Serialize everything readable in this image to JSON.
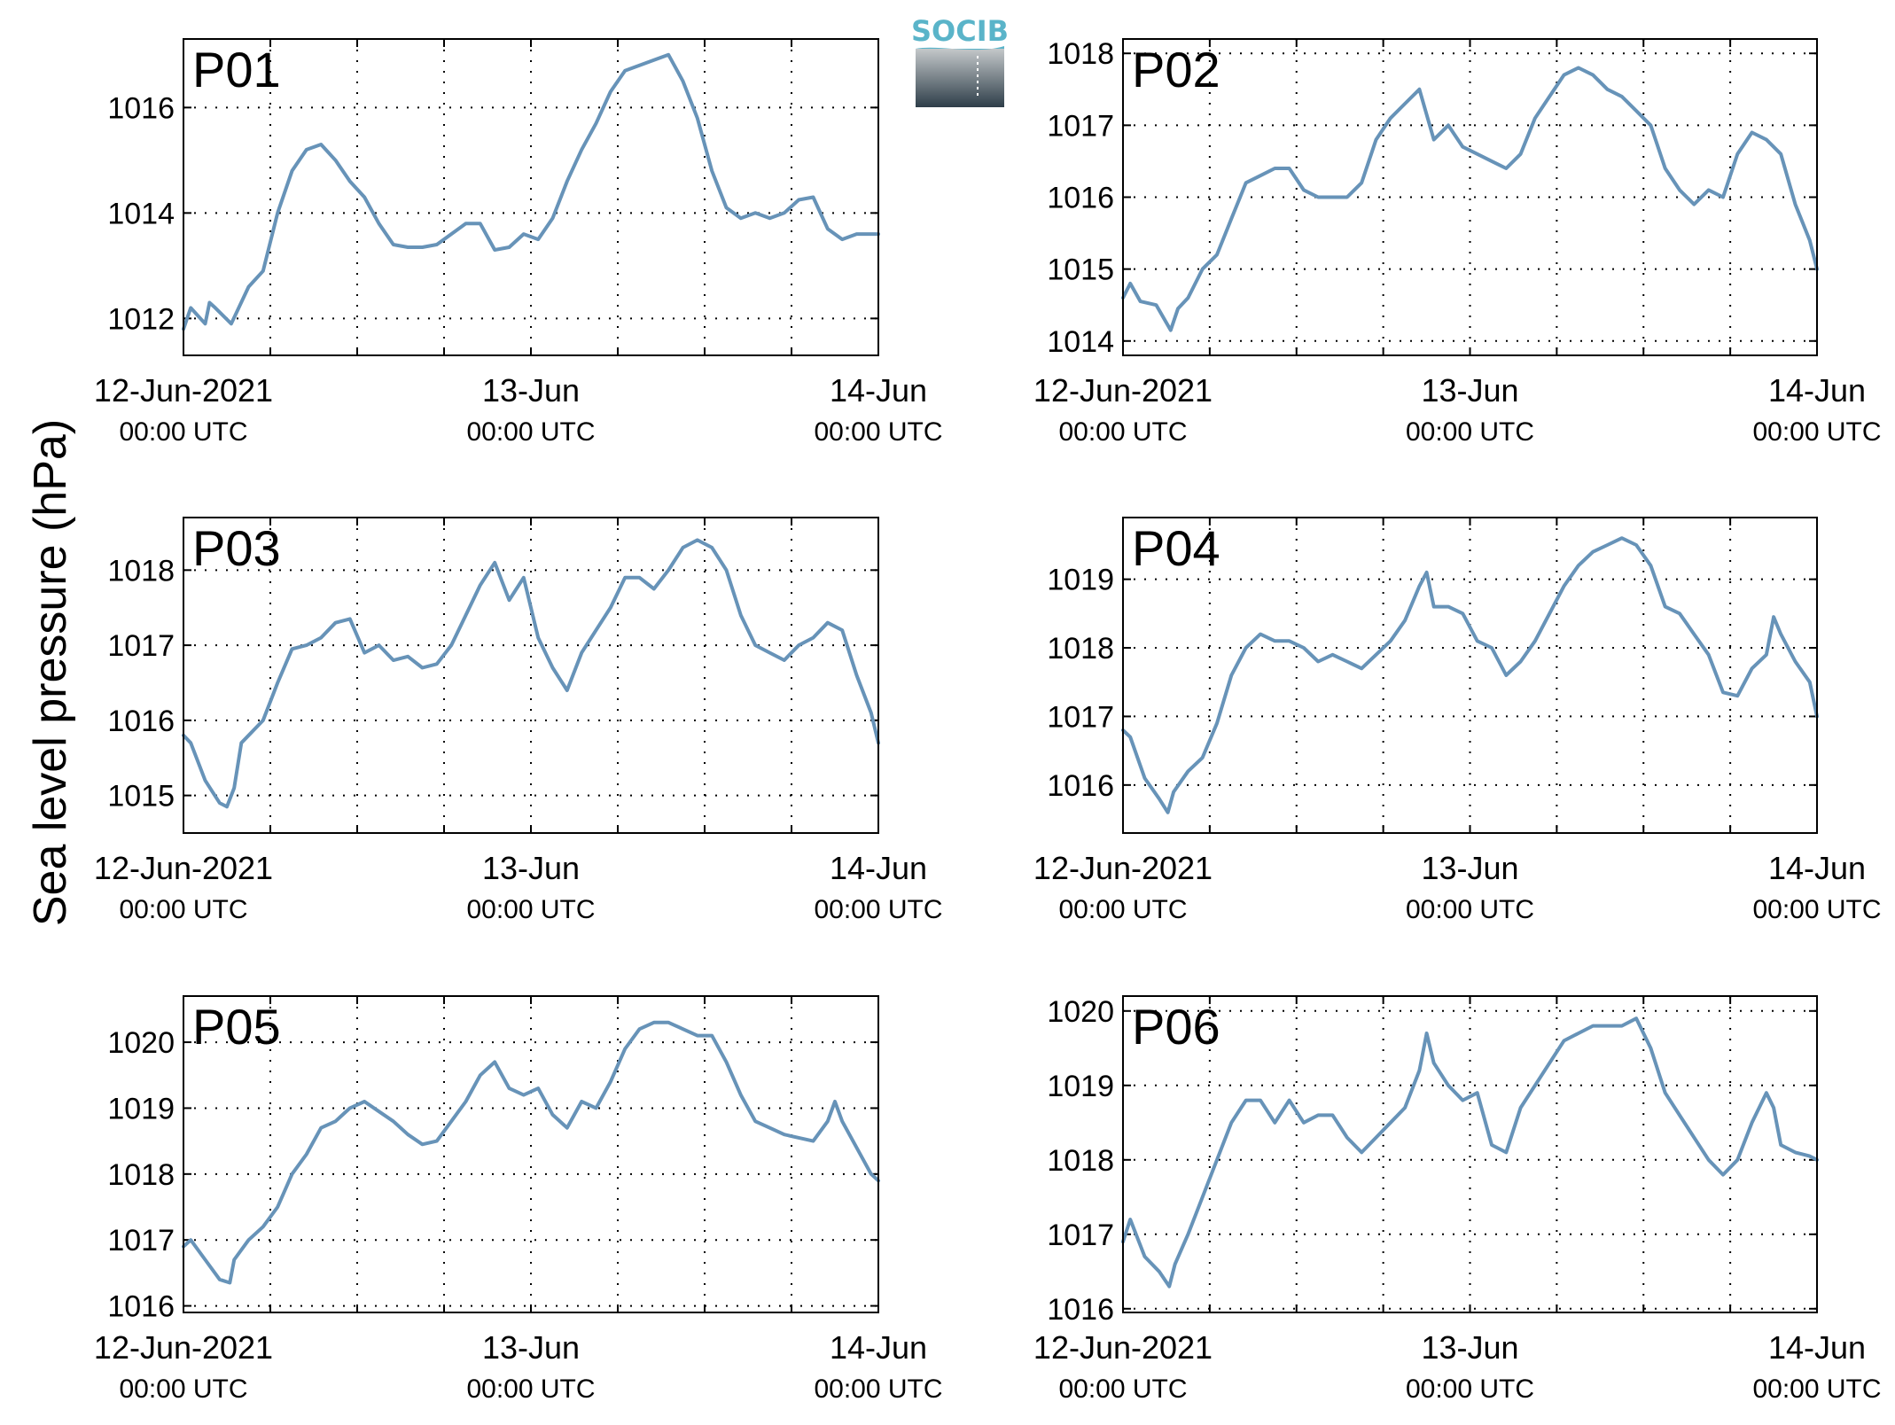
{
  "figure": {
    "ylabel": "Sea level pressure (hPa)",
    "logo_text": "SOCIB",
    "line_color": "#6793b8",
    "label_color": "#ff0000"
  },
  "chart_data": [
    {
      "type": "line",
      "station": "P01",
      "x_tick_labels": [
        {
          "date": "12-Jun-2021",
          "time": "00:00 UTC"
        },
        {
          "date": "13-Jun",
          "time": "00:00 UTC"
        },
        {
          "date": "14-Jun",
          "time": "00:00 UTC"
        }
      ],
      "xlim_hours": [
        0,
        48
      ],
      "ylim": [
        1011.3,
        1017.3
      ],
      "yticks": [
        1012,
        1014,
        1016
      ],
      "grid": true,
      "series": [
        {
          "x_hours": [
            0,
            0.5,
            1.5,
            1.8,
            2.2,
            3.3,
            4.5,
            5.5,
            6.5,
            7.5,
            8.5,
            9.5,
            10.5,
            11.5,
            12.5,
            13.5,
            14.5,
            15.5,
            16.5,
            17.5,
            18.5,
            19.5,
            20.5,
            21.5,
            22.5,
            23.5,
            24.5,
            25.5,
            26.5,
            27.5,
            28.5,
            29.5,
            30.5,
            31.5,
            32.5,
            33.5,
            34.5,
            35.5,
            36.5,
            37.5,
            38.5,
            39.5,
            40.5,
            41.5,
            42.5,
            43.5,
            44.5,
            45.5,
            46.5,
            47.5,
            48
          ],
          "values": [
            1011.8,
            1012.2,
            1011.9,
            1012.3,
            1012.2,
            1011.9,
            1012.6,
            1012.9,
            1014.0,
            1014.8,
            1015.2,
            1015.3,
            1015.0,
            1014.6,
            1014.3,
            1013.8,
            1013.4,
            1013.35,
            1013.35,
            1013.4,
            1013.6,
            1013.8,
            1013.8,
            1013.3,
            1013.35,
            1013.6,
            1013.5,
            1013.9,
            1014.6,
            1015.2,
            1015.7,
            1016.3,
            1016.7,
            1016.8,
            1016.9,
            1017.0,
            1016.5,
            1015.8,
            1014.8,
            1014.1,
            1013.9,
            1014.0,
            1013.9,
            1014.0,
            1014.25,
            1014.3,
            1013.7,
            1013.5,
            1013.6,
            1013.6,
            1013.6
          ]
        }
      ]
    },
    {
      "type": "line",
      "station": "P02",
      "x_tick_labels": [
        {
          "date": "12-Jun-2021",
          "time": "00:00 UTC"
        },
        {
          "date": "13-Jun",
          "time": "00:00 UTC"
        },
        {
          "date": "14-Jun",
          "time": "00:00 UTC"
        }
      ],
      "xlim_hours": [
        0,
        48
      ],
      "ylim": [
        1013.8,
        1018.2
      ],
      "yticks": [
        1014,
        1015,
        1016,
        1017,
        1018
      ],
      "grid": true,
      "series": [
        {
          "x_hours": [
            0,
            0.5,
            1.2,
            2.3,
            3.3,
            3.8,
            4.5,
            5.5,
            6.5,
            7.5,
            8.5,
            9.5,
            10.5,
            11.5,
            12.5,
            13.5,
            14.5,
            15.5,
            16.5,
            17.5,
            18.5,
            19.5,
            20.5,
            21.5,
            22.5,
            23.5,
            24.5,
            25.5,
            26.5,
            27.5,
            28.5,
            29.5,
            30.5,
            31.5,
            32.5,
            33.5,
            34.5,
            35.5,
            36.5,
            37.5,
            38.5,
            39.5,
            40.5,
            41.5,
            42.5,
            43.5,
            44.5,
            45.5,
            46.5,
            47.5,
            48
          ],
          "values": [
            1014.6,
            1014.8,
            1014.55,
            1014.5,
            1014.15,
            1014.45,
            1014.6,
            1015.0,
            1015.2,
            1015.7,
            1016.2,
            1016.3,
            1016.4,
            1016.4,
            1016.1,
            1016.0,
            1016.0,
            1016.0,
            1016.2,
            1016.8,
            1017.1,
            1017.3,
            1017.5,
            1016.8,
            1017.0,
            1016.7,
            1016.6,
            1016.5,
            1016.4,
            1016.6,
            1017.1,
            1017.4,
            1017.7,
            1017.8,
            1017.7,
            1017.5,
            1017.4,
            1017.2,
            1017.0,
            1016.4,
            1016.1,
            1015.9,
            1016.1,
            1016.0,
            1016.6,
            1016.9,
            1016.8,
            1016.6,
            1015.9,
            1015.4,
            1015.0
          ]
        }
      ]
    },
    {
      "type": "line",
      "station": "P03",
      "x_tick_labels": [
        {
          "date": "12-Jun-2021",
          "time": "00:00 UTC"
        },
        {
          "date": "13-Jun",
          "time": "00:00 UTC"
        },
        {
          "date": "14-Jun",
          "time": "00:00 UTC"
        }
      ],
      "xlim_hours": [
        0,
        48
      ],
      "ylim": [
        1014.5,
        1018.7
      ],
      "yticks": [
        1015,
        1016,
        1017,
        1018
      ],
      "grid": true,
      "series": [
        {
          "x_hours": [
            0,
            0.5,
            1.5,
            2.5,
            3.0,
            3.5,
            4.0,
            4.5,
            5.5,
            6.5,
            7.5,
            8.5,
            9.5,
            10.5,
            11.5,
            12.5,
            13.5,
            14.5,
            15.5,
            16.5,
            17.5,
            18.5,
            19.5,
            20.5,
            21.5,
            22.5,
            23.5,
            24.5,
            25.5,
            26.5,
            27.5,
            28.5,
            29.5,
            30.5,
            31.5,
            32.5,
            33.5,
            34.5,
            35.5,
            36.5,
            37.5,
            38.5,
            39.5,
            40.5,
            41.5,
            42.5,
            43.5,
            44.5,
            45.5,
            46.5,
            47.5,
            48
          ],
          "values": [
            1015.8,
            1015.7,
            1015.2,
            1014.9,
            1014.85,
            1015.1,
            1015.7,
            1015.8,
            1016.0,
            1016.5,
            1016.95,
            1017.0,
            1017.1,
            1017.3,
            1017.35,
            1016.9,
            1017.0,
            1016.8,
            1016.85,
            1016.7,
            1016.75,
            1017.0,
            1017.4,
            1017.8,
            1018.1,
            1017.6,
            1017.9,
            1017.1,
            1016.7,
            1016.4,
            1016.9,
            1017.2,
            1017.5,
            1017.9,
            1017.9,
            1017.75,
            1018.0,
            1018.3,
            1018.4,
            1018.3,
            1018.0,
            1017.4,
            1017.0,
            1016.9,
            1016.8,
            1017.0,
            1017.1,
            1017.3,
            1017.2,
            1016.6,
            1016.1,
            1015.7
          ]
        }
      ]
    },
    {
      "type": "line",
      "station": "P04",
      "x_tick_labels": [
        {
          "date": "12-Jun-2021",
          "time": "00:00 UTC"
        },
        {
          "date": "13-Jun",
          "time": "00:00 UTC"
        },
        {
          "date": "14-Jun",
          "time": "00:00 UTC"
        }
      ],
      "xlim_hours": [
        0,
        48
      ],
      "ylim": [
        1015.3,
        1019.9
      ],
      "yticks": [
        1016,
        1017,
        1018,
        1019
      ],
      "grid": true,
      "series": [
        {
          "x_hours": [
            0,
            0.5,
            1.5,
            2.5,
            3.1,
            3.5,
            4.5,
            5.5,
            6.5,
            7.5,
            8.5,
            9.5,
            10.5,
            11.5,
            12.5,
            13.5,
            14.5,
            15.5,
            16.5,
            17.5,
            18.5,
            19.5,
            20.5,
            21.0,
            21.5,
            22.5,
            23.5,
            24.5,
            25.5,
            26.5,
            27.5,
            28.5,
            29.5,
            30.5,
            31.5,
            32.5,
            33.5,
            34.5,
            35.5,
            36.5,
            37.5,
            38.5,
            39.5,
            40.5,
            41.5,
            42.5,
            43.5,
            44.5,
            45.0,
            45.5,
            46.5,
            47.5,
            48
          ],
          "values": [
            1016.8,
            1016.7,
            1016.1,
            1015.8,
            1015.6,
            1015.9,
            1016.2,
            1016.4,
            1016.9,
            1017.6,
            1018.0,
            1018.2,
            1018.1,
            1018.1,
            1018.0,
            1017.8,
            1017.9,
            1017.8,
            1017.7,
            1017.9,
            1018.1,
            1018.4,
            1018.9,
            1019.1,
            1018.6,
            1018.6,
            1018.5,
            1018.1,
            1018.0,
            1017.6,
            1017.8,
            1018.1,
            1018.5,
            1018.9,
            1019.2,
            1019.4,
            1019.5,
            1019.6,
            1019.5,
            1019.2,
            1018.6,
            1018.5,
            1018.2,
            1017.9,
            1017.35,
            1017.3,
            1017.7,
            1017.9,
            1018.45,
            1018.2,
            1017.8,
            1017.5,
            1017.0
          ]
        }
      ]
    },
    {
      "type": "line",
      "station": "P05",
      "x_tick_labels": [
        {
          "date": "12-Jun-2021",
          "time": "00:00 UTC"
        },
        {
          "date": "13-Jun",
          "time": "00:00 UTC"
        },
        {
          "date": "14-Jun",
          "time": "00:00 UTC"
        }
      ],
      "xlim_hours": [
        0,
        48
      ],
      "ylim": [
        1015.9,
        1020.7
      ],
      "yticks": [
        1016,
        1017,
        1018,
        1019,
        1020
      ],
      "grid": true,
      "series": [
        {
          "x_hours": [
            0,
            0.5,
            1.5,
            2.5,
            3.2,
            3.5,
            4.5,
            5.5,
            6.5,
            7.5,
            8.5,
            9.5,
            10.5,
            11.5,
            12.5,
            13.5,
            14.5,
            15.5,
            16.5,
            17.5,
            18.5,
            19.5,
            20.5,
            21.5,
            22.5,
            23.5,
            24.5,
            25.5,
            26.5,
            27.5,
            28.5,
            29.5,
            30.5,
            31.5,
            32.5,
            33.5,
            34.5,
            35.5,
            36.5,
            37.5,
            38.5,
            39.5,
            40.5,
            41.5,
            42.5,
            43.5,
            44.5,
            45.0,
            45.5,
            46.5,
            47.5,
            48
          ],
          "values": [
            1016.9,
            1017.0,
            1016.7,
            1016.4,
            1016.35,
            1016.7,
            1017.0,
            1017.2,
            1017.5,
            1018.0,
            1018.3,
            1018.7,
            1018.8,
            1019.0,
            1019.1,
            1018.95,
            1018.8,
            1018.6,
            1018.45,
            1018.5,
            1018.8,
            1019.1,
            1019.5,
            1019.7,
            1019.3,
            1019.2,
            1019.3,
            1018.9,
            1018.7,
            1019.1,
            1019.0,
            1019.4,
            1019.9,
            1020.2,
            1020.3,
            1020.3,
            1020.2,
            1020.1,
            1020.1,
            1019.7,
            1019.2,
            1018.8,
            1018.7,
            1018.6,
            1018.55,
            1018.5,
            1018.8,
            1019.1,
            1018.8,
            1018.4,
            1018.0,
            1017.9
          ]
        }
      ]
    },
    {
      "type": "line",
      "station": "P06",
      "x_tick_labels": [
        {
          "date": "12-Jun-2021",
          "time": "00:00 UTC"
        },
        {
          "date": "13-Jun",
          "time": "00:00 UTC"
        },
        {
          "date": "14-Jun",
          "time": "00:00 UTC"
        }
      ],
      "xlim_hours": [
        0,
        48
      ],
      "ylim": [
        1015.95,
        1020.2
      ],
      "yticks": [
        1016,
        1017,
        1018,
        1019,
        1020
      ],
      "grid": true,
      "series": [
        {
          "x_hours": [
            0,
            0.5,
            1.5,
            2.5,
            3.2,
            3.6,
            4.5,
            5.5,
            6.5,
            7.5,
            8.5,
            9.5,
            10.5,
            11.5,
            12.5,
            13.5,
            14.5,
            15.5,
            16.5,
            17.5,
            18.5,
            19.5,
            20.5,
            21.0,
            21.5,
            22.5,
            23.5,
            24.5,
            25.5,
            26.5,
            27.5,
            28.5,
            29.5,
            30.5,
            31.5,
            32.5,
            33.5,
            34.5,
            35.5,
            36.5,
            37.5,
            38.5,
            39.5,
            40.5,
            41.5,
            42.5,
            43.5,
            44.5,
            45.0,
            45.5,
            46.5,
            47.5,
            48
          ],
          "values": [
            1016.9,
            1017.2,
            1016.7,
            1016.5,
            1016.3,
            1016.6,
            1017.0,
            1017.5,
            1018.0,
            1018.5,
            1018.8,
            1018.8,
            1018.5,
            1018.8,
            1018.5,
            1018.6,
            1018.6,
            1018.3,
            1018.1,
            1018.3,
            1018.5,
            1018.7,
            1019.2,
            1019.7,
            1019.3,
            1019.0,
            1018.8,
            1018.9,
            1018.2,
            1018.1,
            1018.7,
            1019.0,
            1019.3,
            1019.6,
            1019.7,
            1019.8,
            1019.8,
            1019.8,
            1019.9,
            1019.5,
            1018.9,
            1018.6,
            1018.3,
            1018.0,
            1017.8,
            1018.0,
            1018.5,
            1018.9,
            1018.7,
            1018.2,
            1018.1,
            1018.05,
            1018.0
          ]
        }
      ]
    }
  ]
}
